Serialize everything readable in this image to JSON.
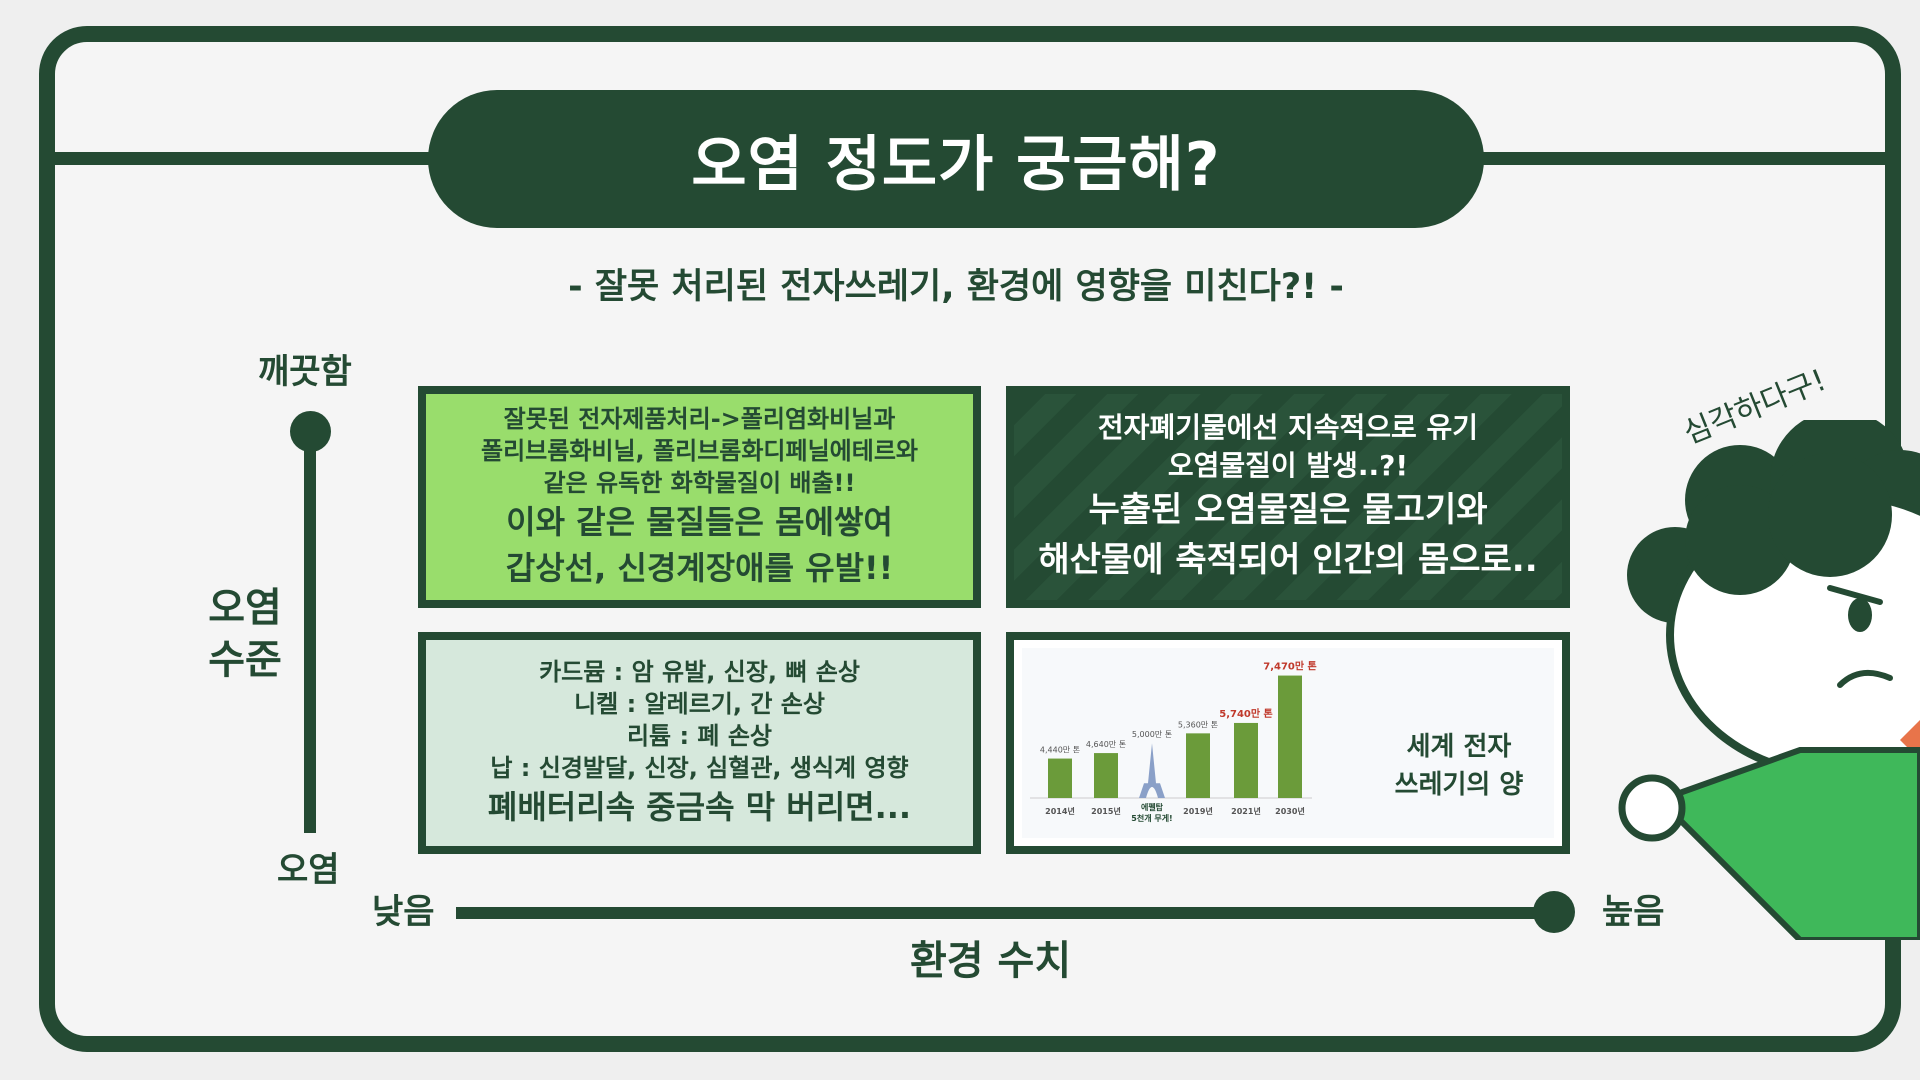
{
  "title": "오염 정도가 궁금해?",
  "subtitle": "- 잘못 처리된 전자쓰레기, 환경에 영향을 미친다?! -",
  "axes": {
    "y_top": "깨끗함",
    "y_label_line1": "오염",
    "y_label_line2": "수준",
    "y_bottom": "오염",
    "x_left": "낮음",
    "x_right": "높음",
    "x_label": "환경 수치"
  },
  "boxes": {
    "top_left": {
      "lines_small": [
        "잘못된 전자제품처리->폴리염화비닐과",
        "폴리브롬화비닐, 폴리브롬화디페닐에테르와",
        "같은 유독한 화학물질이 배출!!"
      ],
      "lines_large": [
        "이와 같은 물질들은 몸에쌓여",
        "갑상선, 신경계장애를 유발!!"
      ]
    },
    "top_right": {
      "lines_small": [
        "전자폐기물에선 지속적으로 유기",
        "오염물질이 발생..?!"
      ],
      "lines_large": [
        "누출된 오염물질은 물고기와",
        "해산물에 축적되어 인간의 몸으로.."
      ]
    },
    "bottom_left": {
      "lines_small": [
        "카드뮴 : 암 유발, 신장, 뼈 손상",
        "니켈 : 알레르기, 간 손상",
        "리튬 : 폐 손상",
        "납 : 신경발달, 신장, 심혈관, 생식계 영향"
      ],
      "lines_large": [
        "폐배터리속 중금속 막 버리면..."
      ]
    },
    "bottom_right": {
      "caption_line1": "세계 전자",
      "caption_line2": "쓰레기의 양"
    }
  },
  "chart_data": {
    "type": "bar",
    "categories": [
      "2014년",
      "2015년",
      "",
      "2019년",
      "2021년",
      "2030년"
    ],
    "values": [
      4440,
      4640,
      5000,
      5360,
      5740,
      7470
    ],
    "value_labels": [
      "4,440만 톤",
      "4,640만 톤",
      "5,000만 톤",
      "5,360만 톤",
      "5,740만 톤",
      "7,470만 톤"
    ],
    "annotation": [
      "에펠탑",
      "5천개 무게!"
    ],
    "colors": {
      "bar": "#6b9b3a",
      "highlight_label": "#c0392b",
      "label": "#555555",
      "tower": "#8aa0c8"
    }
  },
  "mascot": {
    "exclaim": "심각하다구!"
  },
  "colors": {
    "primary": "#244a33",
    "light_green": "#99dd6c",
    "pale_green": "#d6e8dc",
    "mascot_green": "#3fb85a"
  }
}
